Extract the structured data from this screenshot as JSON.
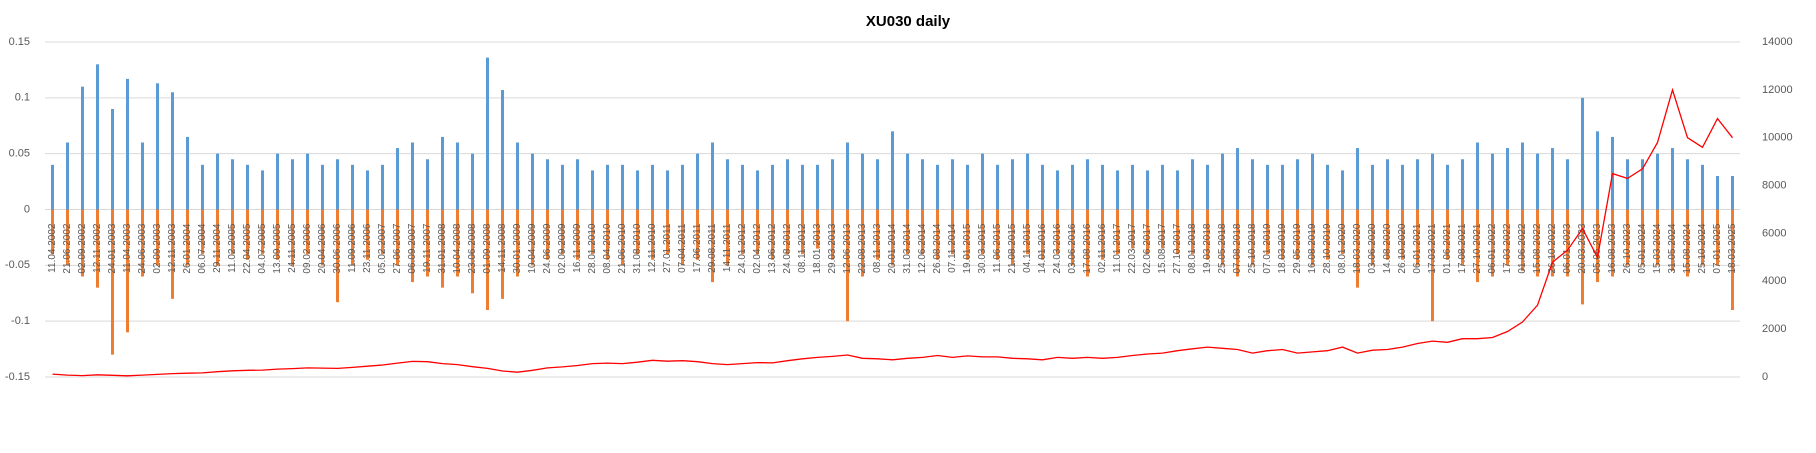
{
  "chart_data": {
    "type": "bar",
    "title": "XU030 daily",
    "categories": [
      "11.04.2002",
      "21.06.2002",
      "02.09.2002",
      "12.11.2002",
      "24.01.2003",
      "11.04.2003",
      "24.06.2003",
      "02.09.2003",
      "12.11.2003",
      "26.01.2004",
      "06.07.2004",
      "29.11.2004",
      "11.02.2005",
      "22.04.2005",
      "04.07.2005",
      "13.09.2005",
      "24.11.2005",
      "09.02.2006",
      "20.04.2006",
      "30.06.2006",
      "11.09.2006",
      "23.11.2006",
      "05.02.2007",
      "27.06.2007",
      "06.09.2007",
      "19.11.2007",
      "31.01.2008",
      "10.04.2008",
      "23.06.2008",
      "01.09.2008",
      "14.11.2008",
      "30.01.2009",
      "10.04.2009",
      "24.06.2009",
      "02.09.2009",
      "16.11.2009",
      "28.01.2010",
      "08.04.2010",
      "21.06.2010",
      "31.08.2010",
      "12.11.2010",
      "27.01.2011",
      "07.04.2011",
      "17.06.2011",
      "29.08.2011",
      "14.11.2011",
      "24.01.2012",
      "02.04.2012",
      "13.06.2012",
      "24.08.2012",
      "08.11.2012",
      "18.01.2013",
      "29.03.2013",
      "12.06.2013",
      "22.08.2013",
      "08.11.2013",
      "20.01.2014",
      "31.03.2014",
      "12.06.2014",
      "26.08.2014",
      "07.11.2014",
      "19.01.2015",
      "30.03.2015",
      "11.06.2015",
      "21.08.2015",
      "04.11.2015",
      "14.01.2016",
      "24.03.2016",
      "03.06.2016",
      "17.08.2016",
      "02.11.2016",
      "11.01.2017",
      "22.03.2017",
      "02.06.2017",
      "15.08.2017",
      "27.10.2017",
      "08.01.2018",
      "19.03.2018",
      "25.05.2018",
      "07.08.2018",
      "25.10.2018",
      "07.01.2019",
      "18.03.2019",
      "29.05.2019",
      "16.08.2019",
      "28.10.2019",
      "08.01.2020",
      "18.03.2020",
      "03.06.2020",
      "14.08.2020",
      "26.10.2020",
      "06.01.2021",
      "17.03.2021",
      "01.06.2021",
      "17.08.2021",
      "27.10.2021",
      "06.01.2022",
      "17.03.2022",
      "01.06.2022",
      "15.08.2022",
      "26.10.2022",
      "06.01.2023",
      "20.03.2023",
      "05.06.2023",
      "16.08.2023",
      "26.10.2023",
      "05.01.2024",
      "15.03.2024",
      "31.05.2024",
      "15.08.2024",
      "25.10.2024",
      "07.01.2025",
      "18.03.2025"
    ],
    "series": [
      {
        "color": "#5b9bd5",
        "values": [
          0.04,
          0.06,
          0.11,
          0.13,
          0.09,
          0.117,
          0.06,
          0.113,
          0.105,
          0.065,
          0.04,
          0.05,
          0.045,
          0.04,
          0.035,
          0.05,
          0.045,
          0.05,
          0.04,
          0.045,
          0.04,
          0.035,
          0.04,
          0.055,
          0.06,
          0.045,
          0.065,
          0.06,
          0.05,
          0.136,
          0.107,
          0.06,
          0.05,
          0.045,
          0.04,
          0.045,
          0.035,
          0.04,
          0.04,
          0.035,
          0.04,
          0.035,
          0.04,
          0.05,
          0.06,
          0.045,
          0.04,
          0.035,
          0.04,
          0.045,
          0.04,
          0.04,
          0.045,
          0.06,
          0.05,
          0.045,
          0.07,
          0.05,
          0.045,
          0.04,
          0.045,
          0.04,
          0.05,
          0.04,
          0.045,
          0.05,
          0.04,
          0.035,
          0.04,
          0.045,
          0.04,
          0.035,
          0.04,
          0.035,
          0.04,
          0.035,
          0.045,
          0.04,
          0.05,
          0.055,
          0.045,
          0.04,
          0.04,
          0.045,
          0.05,
          0.04,
          0.035,
          0.055,
          0.04,
          0.045,
          0.04,
          0.045,
          0.05,
          0.04,
          0.045,
          0.06,
          0.05,
          0.055,
          0.06,
          0.05,
          0.055,
          0.045,
          0.1,
          0.07,
          0.065,
          0.045,
          0.045,
          0.05,
          0.055,
          0.045,
          0.04,
          0.03,
          0.03
        ]
      },
      {
        "color": "#ed7d31",
        "values": [
          -0.04,
          -0.05,
          -0.06,
          -0.07,
          -0.13,
          -0.11,
          -0.06,
          -0.05,
          -0.08,
          -0.05,
          -0.04,
          -0.05,
          -0.04,
          -0.045,
          -0.04,
          -0.045,
          -0.05,
          -0.04,
          -0.05,
          -0.083,
          -0.05,
          -0.045,
          -0.04,
          -0.05,
          -0.065,
          -0.06,
          -0.07,
          -0.06,
          -0.075,
          -0.09,
          -0.08,
          -0.06,
          -0.05,
          -0.045,
          -0.04,
          -0.045,
          -0.04,
          -0.045,
          -0.05,
          -0.04,
          -0.045,
          -0.04,
          -0.05,
          -0.045,
          -0.065,
          -0.05,
          -0.04,
          -0.04,
          -0.045,
          -0.04,
          -0.04,
          -0.035,
          -0.045,
          -0.1,
          -0.06,
          -0.045,
          -0.05,
          -0.04,
          -0.04,
          -0.045,
          -0.04,
          -0.045,
          -0.04,
          -0.045,
          -0.05,
          -0.04,
          -0.045,
          -0.04,
          -0.05,
          -0.06,
          -0.045,
          -0.04,
          -0.035,
          -0.04,
          -0.035,
          -0.04,
          -0.04,
          -0.045,
          -0.05,
          -0.06,
          -0.05,
          -0.04,
          -0.045,
          -0.045,
          -0.05,
          -0.045,
          -0.04,
          -0.07,
          -0.05,
          -0.045,
          -0.045,
          -0.05,
          -0.1,
          -0.045,
          -0.05,
          -0.065,
          -0.06,
          -0.05,
          -0.055,
          -0.06,
          -0.06,
          -0.06,
          -0.085,
          -0.065,
          -0.06,
          -0.05,
          -0.05,
          -0.05,
          -0.055,
          -0.06,
          -0.05,
          -0.05,
          -0.09
        ]
      },
      {
        "color": "#ff0000",
        "type": "line",
        "axis": "y2",
        "values": [
          120,
          80,
          60,
          90,
          70,
          50,
          80,
          110,
          140,
          160,
          170,
          220,
          260,
          280,
          290,
          330,
          350,
          380,
          370,
          360,
          400,
          450,
          500,
          580,
          650,
          640,
          560,
          520,
          430,
          360,
          250,
          200,
          280,
          380,
          420,
          480,
          560,
          580,
          560,
          620,
          700,
          660,
          680,
          640,
          560,
          520,
          560,
          600,
          590,
          680,
          760,
          820,
          860,
          920,
          780,
          760,
          720,
          780,
          820,
          900,
          820,
          880,
          840,
          840,
          780,
          760,
          720,
          820,
          780,
          820,
          780,
          820,
          900,
          960,
          1000,
          1100,
          1180,
          1250,
          1200,
          1150,
          1000,
          1100,
          1150,
          1000,
          1050,
          1100,
          1250,
          1000,
          1120,
          1150,
          1250,
          1400,
          1500,
          1450,
          1600,
          1600,
          1650,
          1900,
          2300,
          3000,
          4800,
          5300,
          6200,
          5000,
          8500,
          8300,
          8700,
          9800,
          12000,
          10000,
          9600,
          10800,
          10000
        ]
      }
    ],
    "ylim": [
      -0.15,
      0.15
    ],
    "yticks": [
      -0.15,
      -0.1,
      -0.05,
      0,
      0.05,
      0.1,
      0.15
    ],
    "y2lim": [
      0,
      14000
    ],
    "y2ticks": [
      0,
      2000,
      4000,
      6000,
      8000,
      10000,
      12000,
      14000
    ],
    "grid": true
  }
}
